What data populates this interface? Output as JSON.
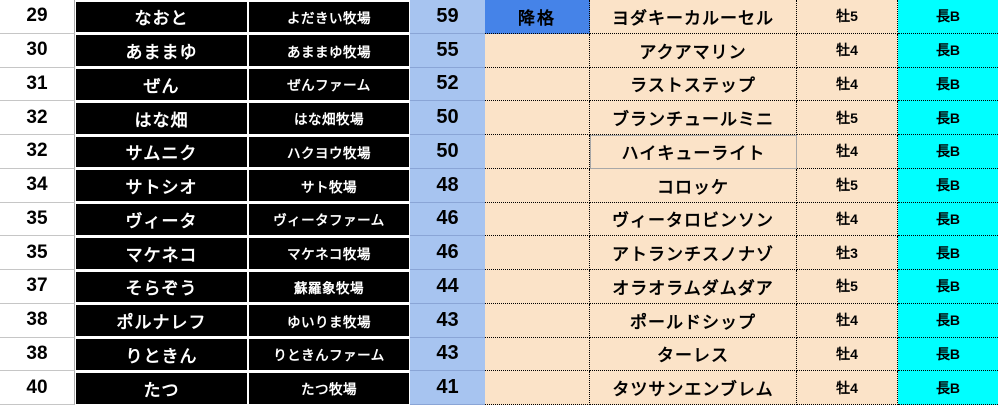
{
  "colors": {
    "rank_bg": "#FFFFFF",
    "name_bg": "#000000",
    "name_text": "#FFFFFF",
    "score_bg": "#A7C4F0",
    "status_bg": "#FBE3C8",
    "demote_bg": "#4583E8",
    "class_bg": "#00FFFF"
  },
  "ui_state": {
    "outlined_horse_cell_row": 4
  },
  "rows": [
    {
      "rank": "29",
      "name": "なおと",
      "farm": "よだきい牧場",
      "score": "59",
      "status": "降格",
      "horse": "ヨダキーカルーセル",
      "sex": "牡5",
      "grade": "長B"
    },
    {
      "rank": "30",
      "name": "あままゆ",
      "farm": "あままゆ牧場",
      "score": "55",
      "status": "",
      "horse": "アクアマリン",
      "sex": "牡4",
      "grade": "長B"
    },
    {
      "rank": "31",
      "name": "ぜん",
      "farm": "ぜんファーム",
      "score": "52",
      "status": "",
      "horse": "ラストステップ",
      "sex": "牡4",
      "grade": "長B"
    },
    {
      "rank": "32",
      "name": "はな畑",
      "farm": "はな畑牧場",
      "score": "50",
      "status": "",
      "horse": "ブランチュールミニ",
      "sex": "牡5",
      "grade": "長B"
    },
    {
      "rank": "32",
      "name": "サムニク",
      "farm": "ハクヨウ牧場",
      "score": "50",
      "status": "",
      "horse": "ハイキューライト",
      "sex": "牡4",
      "grade": "長B"
    },
    {
      "rank": "34",
      "name": "サトシオ",
      "farm": "サト牧場",
      "score": "48",
      "status": "",
      "horse": "コロッケ",
      "sex": "牡5",
      "grade": "長B"
    },
    {
      "rank": "35",
      "name": "ヴィータ",
      "farm": "ヴィータファーム",
      "score": "46",
      "status": "",
      "horse": "ヴィータロビンソン",
      "sex": "牡4",
      "grade": "長B"
    },
    {
      "rank": "35",
      "name": "マケネコ",
      "farm": "マケネコ牧場",
      "score": "46",
      "status": "",
      "horse": "アトランチスノナゾ",
      "sex": "牡3",
      "grade": "長B"
    },
    {
      "rank": "37",
      "name": "そらぞう",
      "farm": "蘇羅象牧場",
      "score": "44",
      "status": "",
      "horse": "オラオラムダムダア",
      "sex": "牡5",
      "grade": "長B"
    },
    {
      "rank": "38",
      "name": "ポルナレフ",
      "farm": "ゆいりま牧場",
      "score": "43",
      "status": "",
      "horse": "ポールドシップ",
      "sex": "牡4",
      "grade": "長B"
    },
    {
      "rank": "38",
      "name": "りときん",
      "farm": "りときんファーム",
      "score": "43",
      "status": "",
      "horse": "ターレス",
      "sex": "牡4",
      "grade": "長B"
    },
    {
      "rank": "40",
      "name": "たつ",
      "farm": "たつ牧場",
      "score": "41",
      "status": "",
      "horse": "タツサンエンブレム",
      "sex": "牡4",
      "grade": "長B"
    }
  ]
}
